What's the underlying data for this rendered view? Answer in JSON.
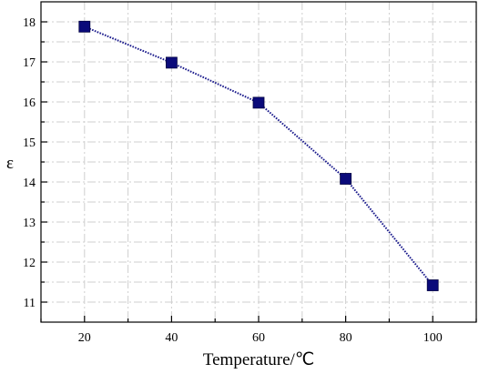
{
  "chart_data": {
    "type": "line",
    "title": "",
    "xlabel": "Temperature/℃",
    "ylabel": "ε",
    "x": [
      20,
      40,
      60,
      80,
      100
    ],
    "series": [
      {
        "values": [
          17.88,
          16.98,
          15.98,
          14.08,
          11.42
        ],
        "color": "#0a0a7a"
      }
    ],
    "xlim": [
      10,
      110
    ],
    "ylim": [
      10.5,
      18.5
    ],
    "xticks_major": [
      20,
      40,
      60,
      80,
      100
    ],
    "xticks_minor": [
      10,
      30,
      50,
      70,
      90,
      110
    ],
    "yticks_major": [
      11,
      12,
      13,
      14,
      15,
      16,
      17,
      18
    ],
    "yticks_minor": [
      11.5,
      12.5,
      13.5,
      14.5,
      15.5,
      16.5,
      17.5
    ],
    "x_tick_labels": [
      "20",
      "40",
      "60",
      "80",
      "100"
    ],
    "y_tick_labels": [
      "11",
      "12",
      "13",
      "14",
      "15",
      "16",
      "17",
      "18"
    ],
    "grid": true,
    "legend": "none",
    "marker": "square"
  }
}
